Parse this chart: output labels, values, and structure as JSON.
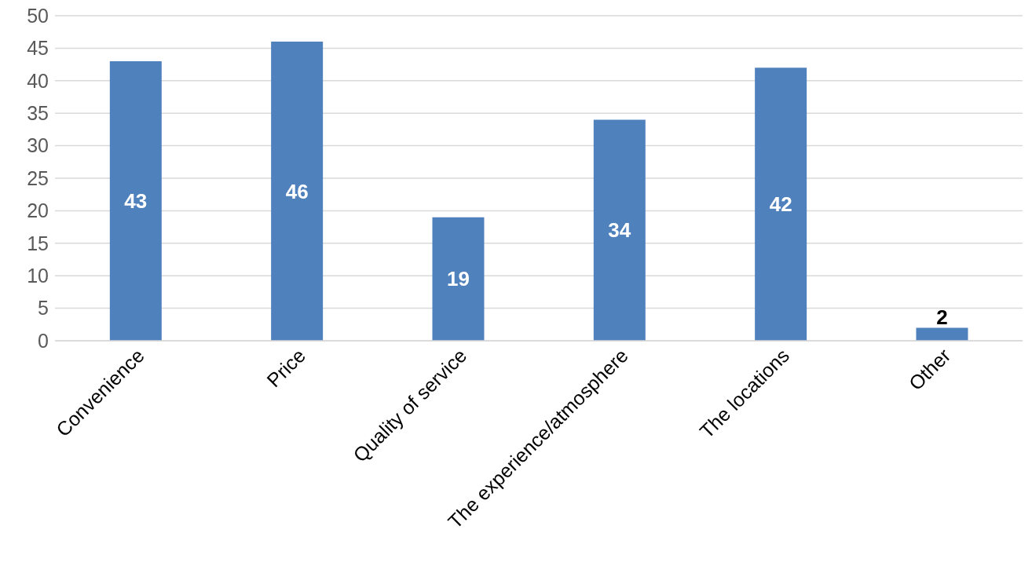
{
  "chart_data": {
    "type": "bar",
    "categories": [
      "Convenience",
      "Price",
      "Quality of service",
      "The experience/atmosphere",
      "The locations",
      "Other"
    ],
    "values": [
      43,
      46,
      19,
      34,
      42,
      2
    ],
    "color": "#4f81bd",
    "ylim": [
      0,
      50
    ],
    "yticks": [
      0,
      5,
      10,
      15,
      20,
      25,
      30,
      35,
      40,
      45,
      50
    ],
    "grid": "y",
    "data_labels": true
  }
}
